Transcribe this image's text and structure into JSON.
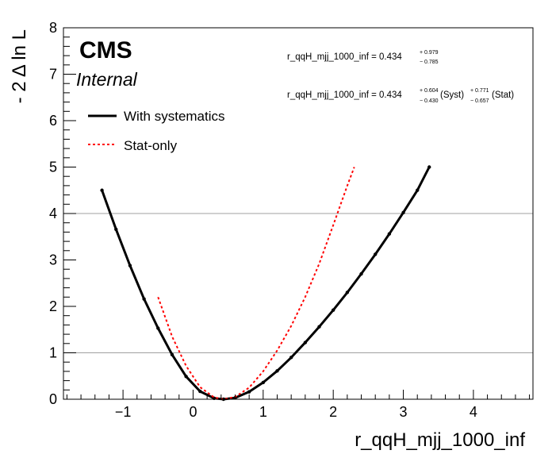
{
  "chart_data": {
    "type": "line",
    "xlabel": "r_qqH_mjj_1000_inf",
    "ylabel": "- 2 Δ ln L",
    "xlim": [
      -1.85,
      4.85
    ],
    "ylim": [
      0,
      8
    ],
    "x_ticks": [
      -1,
      0,
      1,
      2,
      3,
      4
    ],
    "x_tick_labels": [
      "−1",
      "0",
      "1",
      "2",
      "3",
      "4"
    ],
    "y_ticks": [
      0,
      1,
      2,
      3,
      4,
      5,
      6,
      7,
      8
    ],
    "y_tick_labels": [
      "0",
      "1",
      "2",
      "3",
      "4",
      "5",
      "6",
      "7",
      "8"
    ],
    "reference_lines": [
      1,
      4
    ],
    "experiment_label": "CMS",
    "status_label": "Internal",
    "series": [
      {
        "name": "With systematics",
        "color": "#000000",
        "style": "solid",
        "x": [
          -1.3,
          -1.1,
          -0.9,
          -0.7,
          -0.5,
          -0.3,
          -0.1,
          0.1,
          0.3,
          0.434,
          0.6,
          0.8,
          1.0,
          1.2,
          1.4,
          1.6,
          1.8,
          2.0,
          2.2,
          2.4,
          2.6,
          2.8,
          3.0,
          3.2,
          3.37
        ],
        "y": [
          4.5,
          3.66,
          2.88,
          2.16,
          1.53,
          0.96,
          0.49,
          0.17,
          0.02,
          0.0,
          0.03,
          0.16,
          0.36,
          0.61,
          0.9,
          1.22,
          1.56,
          1.92,
          2.3,
          2.7,
          3.12,
          3.56,
          4.02,
          4.5,
          5.0
        ]
      },
      {
        "name": "Stat-only",
        "color": "#ff0000",
        "style": "dashed",
        "x": [
          -0.5,
          -0.3,
          -0.1,
          0.1,
          0.3,
          0.434,
          0.6,
          0.8,
          1.0,
          1.2,
          1.4,
          1.6,
          1.8,
          2.0,
          2.2,
          2.3
        ],
        "y": [
          2.2,
          1.35,
          0.72,
          0.26,
          0.04,
          0.0,
          0.05,
          0.25,
          0.6,
          1.05,
          1.58,
          2.2,
          2.92,
          3.75,
          4.6,
          5.0
        ]
      }
    ],
    "annotations": {
      "total": {
        "text": "r_qqH_mjj_1000_inf = 0.434",
        "up": "+ 0.979",
        "down": "− 0.785"
      },
      "breakdown": {
        "text": "r_qqH_mjj_1000_inf = 0.434",
        "syst_up": "+ 0.604",
        "syst_down": "− 0.430",
        "syst_label": "(Syst)",
        "stat_up": "+ 0.771",
        "stat_down": "− 0.657",
        "stat_label": "(Stat)"
      }
    }
  }
}
